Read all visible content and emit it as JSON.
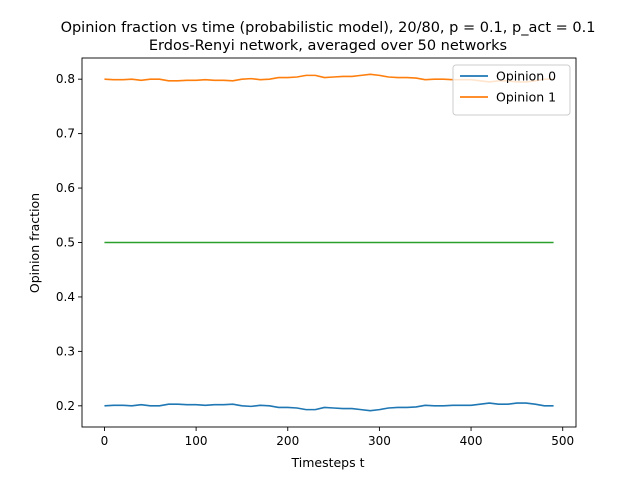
{
  "chart_data": {
    "type": "line",
    "title_line1": "Opinion fraction vs time (probabilistic model), 20/80, p = 0.1, p_act = 0.1",
    "title_line2": "Erdos-Renyi network, averaged over 50 networks",
    "xlabel": "Timesteps t",
    "ylabel": "Opinion fraction",
    "xlim": [
      -24.5,
      514.5
    ],
    "ylim": [
      0.1611,
      0.8389
    ],
    "xticks": [
      0,
      100,
      200,
      300,
      400,
      500
    ],
    "yticks": [
      0.2,
      0.3,
      0.4,
      0.5,
      0.6,
      0.7,
      0.8
    ],
    "legend_position": "upper-right",
    "x": [
      0,
      10,
      20,
      30,
      40,
      50,
      60,
      70,
      80,
      90,
      100,
      110,
      120,
      130,
      140,
      150,
      160,
      170,
      180,
      190,
      200,
      210,
      220,
      230,
      240,
      250,
      260,
      270,
      280,
      290,
      300,
      310,
      320,
      330,
      340,
      350,
      360,
      370,
      380,
      390,
      400,
      410,
      420,
      430,
      440,
      450,
      460,
      470,
      480,
      490
    ],
    "series": [
      {
        "name": "Opinion 0",
        "color": "#1f77b4",
        "values": [
          0.2,
          0.201,
          0.201,
          0.2,
          0.202,
          0.2,
          0.2,
          0.203,
          0.203,
          0.202,
          0.202,
          0.201,
          0.202,
          0.202,
          0.203,
          0.2,
          0.199,
          0.201,
          0.2,
          0.197,
          0.197,
          0.196,
          0.193,
          0.193,
          0.197,
          0.196,
          0.195,
          0.195,
          0.193,
          0.191,
          0.193,
          0.196,
          0.197,
          0.197,
          0.198,
          0.201,
          0.2,
          0.2,
          0.201,
          0.201,
          0.201,
          0.203,
          0.205,
          0.203,
          0.203,
          0.205,
          0.205,
          0.203,
          0.2,
          0.2
        ]
      },
      {
        "name": "Opinion 1",
        "color": "#ff7f0e",
        "values": [
          0.8,
          0.799,
          0.799,
          0.8,
          0.798,
          0.8,
          0.8,
          0.797,
          0.797,
          0.798,
          0.798,
          0.799,
          0.798,
          0.798,
          0.797,
          0.8,
          0.801,
          0.799,
          0.8,
          0.803,
          0.803,
          0.804,
          0.807,
          0.807,
          0.803,
          0.804,
          0.805,
          0.805,
          0.807,
          0.809,
          0.807,
          0.804,
          0.803,
          0.803,
          0.802,
          0.799,
          0.8,
          0.8,
          0.799,
          0.799,
          0.799,
          0.797,
          0.795,
          0.797,
          0.797,
          0.795,
          0.795,
          0.797,
          0.8,
          0.8
        ]
      },
      {
        "color": "#2ca02c",
        "values": [
          0.5,
          0.5,
          0.5,
          0.5,
          0.5,
          0.5,
          0.5,
          0.5,
          0.5,
          0.5,
          0.5,
          0.5,
          0.5,
          0.5,
          0.5,
          0.5,
          0.5,
          0.5,
          0.5,
          0.5,
          0.5,
          0.5,
          0.5,
          0.5,
          0.5,
          0.5,
          0.5,
          0.5,
          0.5,
          0.5,
          0.5,
          0.5,
          0.5,
          0.5,
          0.5,
          0.5,
          0.5,
          0.5,
          0.5,
          0.5,
          0.5,
          0.5,
          0.5,
          0.5,
          0.5,
          0.5,
          0.5,
          0.5,
          0.5,
          0.5
        ]
      }
    ]
  }
}
